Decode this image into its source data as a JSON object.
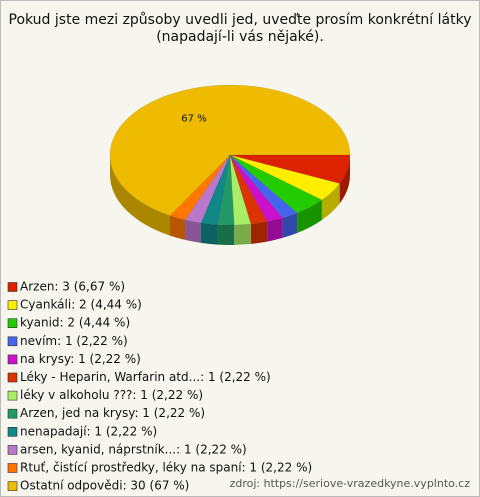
{
  "chart_data": {
    "type": "pie3d",
    "title": "Pokud jste mezi způsoby uvedli jed, uveďte prosím konkrétní látky (napadají-li vás nějaké).",
    "categories": [
      "Arzen: 3 (6,67 %)",
      "Cyankáli: 2 (4,44 %)",
      "kyanid: 2 (4,44 %)",
      "nevím: 1 (2,22 %)",
      "na krysy: 1 (2,22 %)",
      "Léky - Heparin, Warfarin atd...: 1 (2,22 %)",
      "léky v alkoholu ???: 1 (2,22 %)",
      "Arzen, jed na krysy: 1 (2,22 %)",
      "nenapadají: 1 (2,22 %)",
      "arsen, kyanid, náprstník...: 1 (2,22 %)",
      "Rtuť, čistící prostředky, léky na spaní: 1 (2,22 %)",
      "Ostatní odpovědi: 30 (67 %)"
    ],
    "values": [
      3,
      2,
      2,
      1,
      1,
      1,
      1,
      1,
      1,
      1,
      1,
      30
    ],
    "value_labels": [
      null,
      null,
      null,
      null,
      null,
      null,
      null,
      null,
      null,
      null,
      null,
      "67 %"
    ],
    "colors": [
      "#dd2200",
      "#ffee00",
      "#22cc00",
      "#4466ee",
      "#cc11cc",
      "#dd3300",
      "#aaee66",
      "#229966",
      "#118888",
      "#bb77cc",
      "#ff7700",
      "#eebb00"
    ],
    "source": "zdroj: https://seriove-vrazedkyne.vyplnto.cz"
  }
}
